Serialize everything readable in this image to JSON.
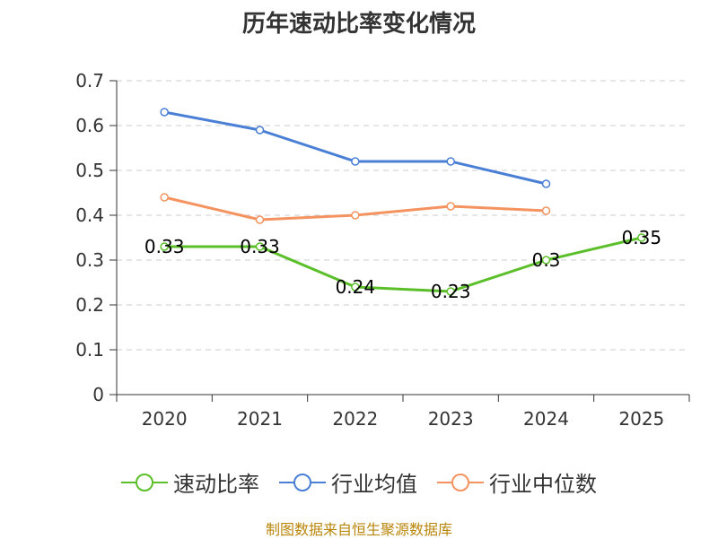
{
  "chart_data": {
    "type": "line",
    "title": "历年速动比率变化情况",
    "categories": [
      "2020",
      "2021",
      "2022",
      "2023",
      "2024",
      "2025"
    ],
    "ylim": [
      0,
      0.7
    ],
    "yticks": [
      0,
      0.1,
      0.2,
      0.3,
      0.4,
      0.5,
      0.6,
      0.7
    ],
    "ytick_labels": [
      "0",
      "0.1",
      "0.2",
      "0.3",
      "0.4",
      "0.5",
      "0.6",
      "0.7"
    ],
    "grid": true,
    "legend_position": "bottom",
    "series": [
      {
        "name": "速动比率",
        "color": "#5bbf2a",
        "values": [
          0.33,
          0.33,
          0.24,
          0.23,
          0.3,
          0.35
        ],
        "labels": [
          "0.33",
          "0.33",
          "0.24",
          "0.23",
          "0.3",
          "0.35"
        ]
      },
      {
        "name": "行业均值",
        "color": "#4a7fd6",
        "values": [
          0.63,
          0.59,
          0.52,
          0.52,
          0.47,
          null
        ]
      },
      {
        "name": "行业中位数",
        "color": "#f4935f",
        "values": [
          0.44,
          0.39,
          0.4,
          0.42,
          0.41,
          null
        ]
      }
    ]
  },
  "source_text": "制图数据来自恒生聚源数据库"
}
